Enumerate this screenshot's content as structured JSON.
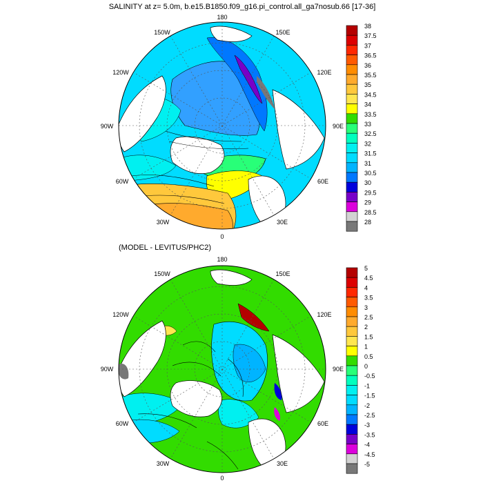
{
  "panels": [
    {
      "id": "top",
      "title": "SALINITY at z=   5.0m, b.e15.B1850.f09_g16.pi_control.all_ga7nosub.66 [17-36]",
      "lon_labels": {
        "top": "180",
        "upper_left": "150W",
        "upper_right": "150E",
        "left_upper": "120W",
        "right_upper": "120E",
        "left": "90W",
        "right": "90E",
        "left_lower": "60W",
        "right_lower": "60E",
        "lower_left": "30W",
        "lower_right": "30E",
        "bottom": "0"
      },
      "colorbar_labels": [
        "38",
        "37.5",
        "37",
        "36.5",
        "36",
        "35.5",
        "35",
        "34.5",
        "34",
        "33.5",
        "33",
        "32.5",
        "32",
        "31.5",
        "31",
        "30.5",
        "30",
        "29.5",
        "29",
        "28.5",
        "28"
      ]
    },
    {
      "id": "bottom",
      "title": "(MODEL - LEVITUS/PHC2)",
      "lon_labels": {
        "top": "180",
        "upper_left": "150W",
        "upper_right": "150E",
        "left_upper": "120W",
        "right_upper": "120E",
        "left": "90W",
        "right": "90E",
        "left_lower": "60W",
        "right_lower": "60E",
        "lower_left": "30W",
        "lower_right": "30E",
        "bottom": "0"
      },
      "colorbar_labels": [
        "5",
        "4.5",
        "4",
        "3.5",
        "3",
        "2.5",
        "2",
        "1.5",
        "1",
        "0.5",
        "0",
        "-0.5",
        "-1",
        "-1.5",
        "-2",
        "-2.5",
        "-3",
        "-3.5",
        "-4",
        "-4.5",
        "-5"
      ]
    }
  ],
  "colorbar_colors": [
    "#b40000",
    "#dc0000",
    "#ff2800",
    "#ff5a00",
    "#ff8c00",
    "#ffaa2d",
    "#ffc83c",
    "#ffe650",
    "#ffff00",
    "#32dc00",
    "#28ff78",
    "#00ffbe",
    "#00f0f0",
    "#00dcff",
    "#00b4ff",
    "#0078ff",
    "#0000dc",
    "#7800c8",
    "#dc00dc",
    "#d2d2d2",
    "#787878"
  ],
  "region_colors": {
    "land": "#ffffff",
    "top_fill": [
      "#32a0ff",
      "#00dcff",
      "#00f0f0",
      "#28ff78",
      "#ffff00",
      "#ffc83c",
      "#ffaa2d",
      "#7800c8",
      "#0000dc",
      "#787878"
    ],
    "bottom_fill": [
      "#32dc00",
      "#00dcff",
      "#00b4ff",
      "#00f0f0",
      "#0000dc",
      "#b40000",
      "#ffe650",
      "#dc00dc",
      "#787878"
    ]
  }
}
